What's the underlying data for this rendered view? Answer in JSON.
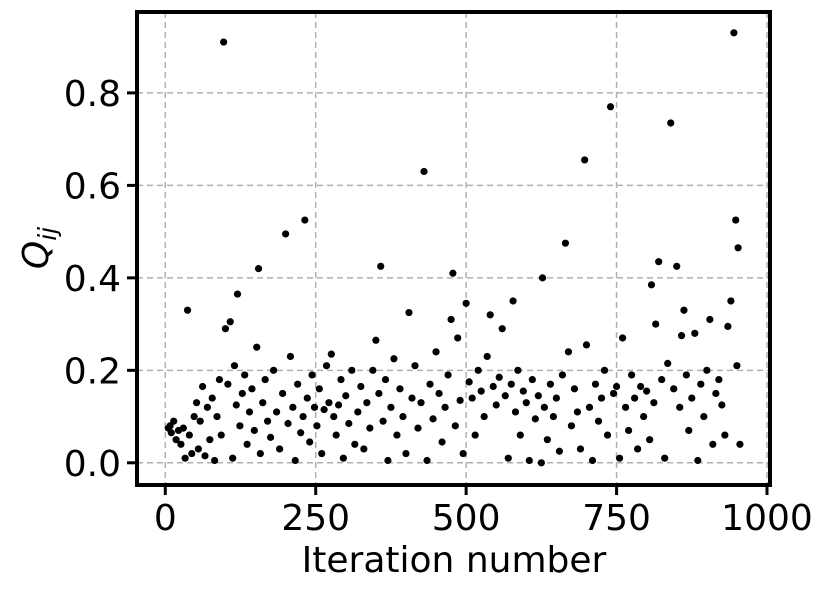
{
  "chart_data": {
    "type": "scatter",
    "xlabel": "Iteration number",
    "ylabel": "Q",
    "ylabel_sub": "ij",
    "color": "#000000",
    "grid": true,
    "xlim": [
      -47,
      1005
    ],
    "ylim": [
      -0.048,
      0.975
    ],
    "xticks": [
      0,
      250,
      500,
      750,
      1000
    ],
    "yticks": [
      {
        "value": 0,
        "label": "0.0"
      },
      0.2,
      0.4,
      0.6,
      0.8
    ],
    "x": [
      5,
      8,
      10,
      14,
      18,
      22,
      26,
      30,
      33,
      37,
      40,
      44,
      48,
      52,
      55,
      58,
      62,
      66,
      70,
      74,
      78,
      82,
      86,
      90,
      93,
      97,
      100,
      104,
      108,
      112,
      115,
      118,
      120,
      124,
      128,
      132,
      136,
      140,
      144,
      148,
      152,
      155,
      158,
      162,
      166,
      170,
      175,
      180,
      185,
      190,
      195,
      200,
      204,
      208,
      212,
      216,
      220,
      225,
      229,
      232,
      236,
      240,
      244,
      248,
      252,
      256,
      260,
      264,
      268,
      272,
      276,
      280,
      284,
      288,
      292,
      296,
      300,
      305,
      310,
      315,
      320,
      325,
      330,
      335,
      340,
      345,
      350,
      355,
      358,
      362,
      366,
      370,
      375,
      380,
      385,
      390,
      395,
      400,
      405,
      410,
      415,
      420,
      425,
      430,
      435,
      440,
      445,
      450,
      455,
      460,
      465,
      470,
      475,
      478,
      482,
      486,
      490,
      495,
      500,
      505,
      510,
      515,
      520,
      525,
      530,
      535,
      540,
      545,
      550,
      555,
      560,
      565,
      570,
      575,
      578,
      582,
      586,
      590,
      595,
      600,
      605,
      610,
      615,
      620,
      625,
      627,
      630,
      635,
      640,
      645,
      650,
      655,
      660,
      665,
      670,
      675,
      680,
      685,
      690,
      697,
      700,
      705,
      710,
      715,
      720,
      725,
      730,
      735,
      740,
      745,
      750,
      755,
      760,
      765,
      770,
      775,
      780,
      785,
      790,
      795,
      800,
      805,
      808,
      812,
      815,
      820,
      825,
      830,
      835,
      840,
      845,
      850,
      855,
      858,
      862,
      866,
      870,
      875,
      880,
      885,
      890,
      895,
      900,
      905,
      910,
      915,
      920,
      925,
      930,
      935,
      940,
      945,
      948,
      950,
      952,
      955
    ],
    "values": [
      0.075,
      0.08,
      0.065,
      0.09,
      0.05,
      0.07,
      0.04,
      0.075,
      0.01,
      0.33,
      0.06,
      0.02,
      0.1,
      0.13,
      0.03,
      0.09,
      0.165,
      0.015,
      0.12,
      0.05,
      0.14,
      0.005,
      0.1,
      0.18,
      0.06,
      0.91,
      0.29,
      0.17,
      0.305,
      0.01,
      0.21,
      0.125,
      0.365,
      0.08,
      0.15,
      0.19,
      0.04,
      0.11,
      0.16,
      0.07,
      0.25,
      0.42,
      0.02,
      0.13,
      0.18,
      0.09,
      0.055,
      0.2,
      0.11,
      0.03,
      0.15,
      0.495,
      0.085,
      0.23,
      0.12,
      0.005,
      0.17,
      0.065,
      0.1,
      0.525,
      0.14,
      0.045,
      0.19,
      0.12,
      0.08,
      0.16,
      0.02,
      0.115,
      0.21,
      0.13,
      0.235,
      0.1,
      0.06,
      0.125,
      0.18,
      0.01,
      0.145,
      0.085,
      0.2,
      0.04,
      0.11,
      0.165,
      0.03,
      0.13,
      0.075,
      0.2,
      0.265,
      0.15,
      0.425,
      0.09,
      0.18,
      0.005,
      0.12,
      0.225,
      0.06,
      0.16,
      0.1,
      0.02,
      0.325,
      0.14,
      0.21,
      0.075,
      0.13,
      0.63,
      0.005,
      0.17,
      0.095,
      0.24,
      0.15,
      0.045,
      0.12,
      0.19,
      0.31,
      0.41,
      0.08,
      0.27,
      0.135,
      0.02,
      0.345,
      0.175,
      0.14,
      0.06,
      0.2,
      0.155,
      0.1,
      0.23,
      0.32,
      0.165,
      0.125,
      0.185,
      0.29,
      0.145,
      0.01,
      0.17,
      0.35,
      0.11,
      0.2,
      0.06,
      0.155,
      0.13,
      0.005,
      0.18,
      0.095,
      0.145,
      0.0,
      0.4,
      0.12,
      0.05,
      0.17,
      0.1,
      0.14,
      0.025,
      0.19,
      0.475,
      0.24,
      0.08,
      0.16,
      0.11,
      0.03,
      0.655,
      0.255,
      0.12,
      0.005,
      0.17,
      0.09,
      0.14,
      0.2,
      0.06,
      0.77,
      0.15,
      0.165,
      0.01,
      0.27,
      0.12,
      0.07,
      0.19,
      0.14,
      0.03,
      0.165,
      0.1,
      0.155,
      0.05,
      0.385,
      0.13,
      0.3,
      0.435,
      0.18,
      0.01,
      0.215,
      0.735,
      0.16,
      0.425,
      0.12,
      0.275,
      0.33,
      0.19,
      0.07,
      0.14,
      0.28,
      0.005,
      0.17,
      0.1,
      0.2,
      0.31,
      0.04,
      0.15,
      0.18,
      0.125,
      0.06,
      0.295,
      0.35,
      0.93,
      0.525,
      0.21,
      0.465,
      0.04
    ]
  }
}
